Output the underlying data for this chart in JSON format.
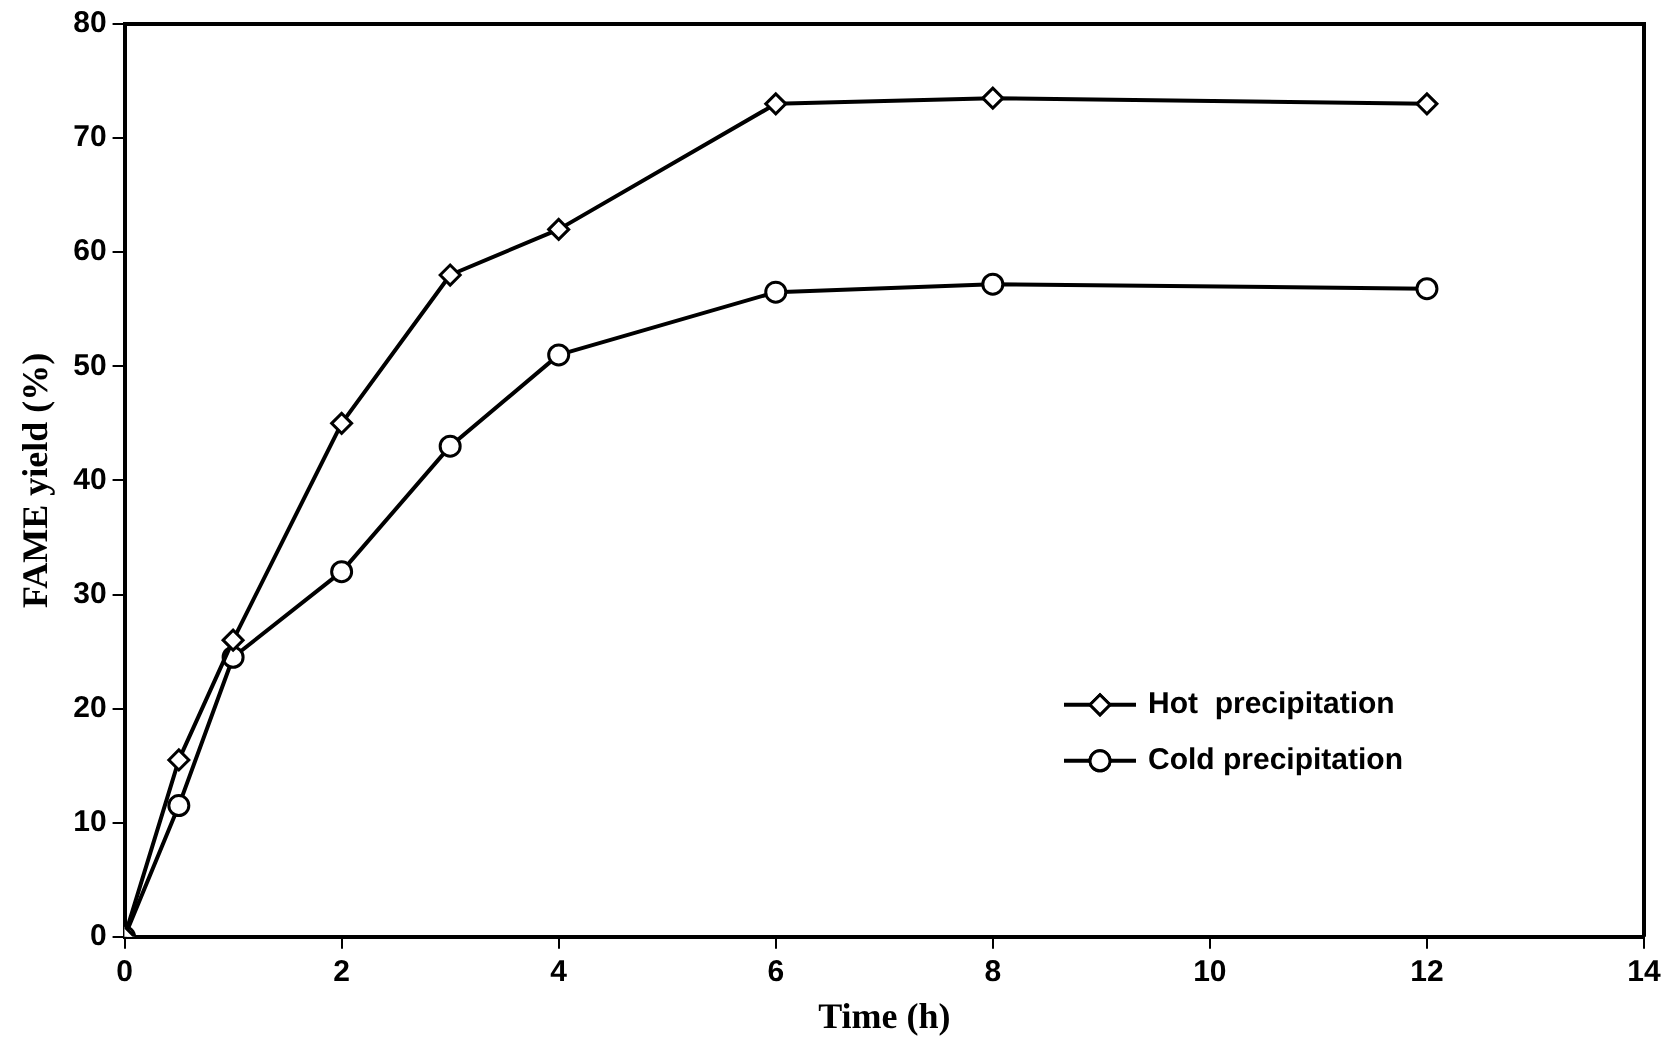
{
  "chart_data": {
    "type": "line",
    "xlabel": "Time (h)",
    "ylabel": "FAME yield (%)",
    "x": [
      0,
      0.5,
      1,
      2,
      3,
      4,
      6,
      8,
      12
    ],
    "series": [
      {
        "name": "Hot  precipitation",
        "color": "#000000",
        "marker": "diamond",
        "values": [
          0,
          15.5,
          26,
          45,
          58,
          62,
          73,
          73.5,
          73
        ]
      },
      {
        "name": "Cold precipitation",
        "color": "#000000",
        "marker": "circle",
        "values": [
          0,
          11.5,
          24.5,
          32,
          43,
          51,
          56.5,
          57.2,
          56.8
        ]
      }
    ],
    "xlim": [
      0,
      14
    ],
    "xticks": [
      0,
      2,
      4,
      6,
      8,
      10,
      12,
      14
    ],
    "ylim": [
      0,
      80
    ],
    "yticks": [
      0,
      10,
      20,
      30,
      40,
      50,
      60,
      70,
      80
    ],
    "grid": false,
    "legend": "bottom right",
    "line_style": "solid"
  }
}
